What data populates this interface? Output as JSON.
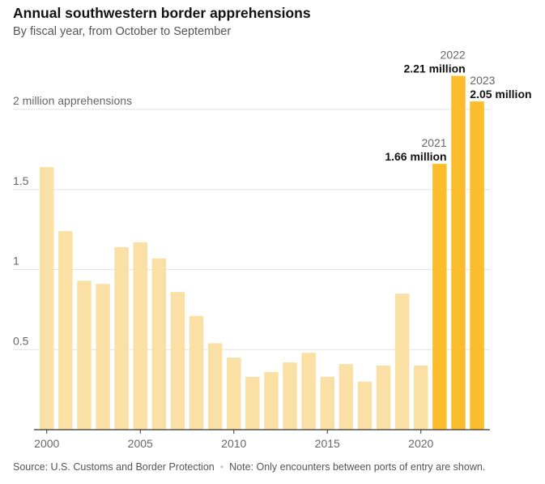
{
  "title": "Annual southwestern border apprehensions",
  "subtitle": "By fiscal year, from October to September",
  "source": "Source: U.S. Customs and Border Protection",
  "separator": "•",
  "note": "Note: Only encounters between ports of entry are shown.",
  "colors": {
    "light_bar": "#fbe0a6",
    "highlight_bar": "#fbbd2b",
    "grid": "#e2e2e2",
    "axis": "#333333",
    "tick_text": "#666666"
  },
  "chart_data": {
    "type": "bar",
    "title": "Annual southwestern border apprehensions",
    "subtitle": "By fiscal year, from October to September",
    "ylabel": "2 million apprehensions",
    "ylim": [
      0,
      2.21
    ],
    "grid": true,
    "y_ticks": [
      {
        "value": 0.5,
        "label": "0.5"
      },
      {
        "value": 1,
        "label": "1"
      },
      {
        "value": 1.5,
        "label": "1.5"
      },
      {
        "value": 2,
        "label": "2 million apprehensions"
      }
    ],
    "x_ticks": [
      2000,
      2005,
      2010,
      2015,
      2020
    ],
    "categories": [
      2000,
      2001,
      2002,
      2003,
      2004,
      2005,
      2006,
      2007,
      2008,
      2009,
      2010,
      2011,
      2012,
      2013,
      2014,
      2015,
      2016,
      2017,
      2018,
      2019,
      2020,
      2021,
      2022,
      2023
    ],
    "values": [
      1.64,
      1.24,
      0.93,
      0.91,
      1.14,
      1.17,
      1.07,
      0.86,
      0.71,
      0.54,
      0.45,
      0.33,
      0.36,
      0.42,
      0.48,
      0.33,
      0.41,
      0.3,
      0.4,
      0.85,
      0.4,
      1.66,
      2.21,
      2.05
    ],
    "highlighted": [
      2021,
      2022,
      2023
    ],
    "annotations": [
      {
        "year": 2021,
        "year_label": "2021",
        "value_label": "1.66 million",
        "align": "right"
      },
      {
        "year": 2022,
        "year_label": "2022",
        "value_label": "2.21 million",
        "align": "right"
      },
      {
        "year": 2023,
        "year_label": "2023",
        "value_label": "2.05 million",
        "align": "left"
      }
    ]
  }
}
